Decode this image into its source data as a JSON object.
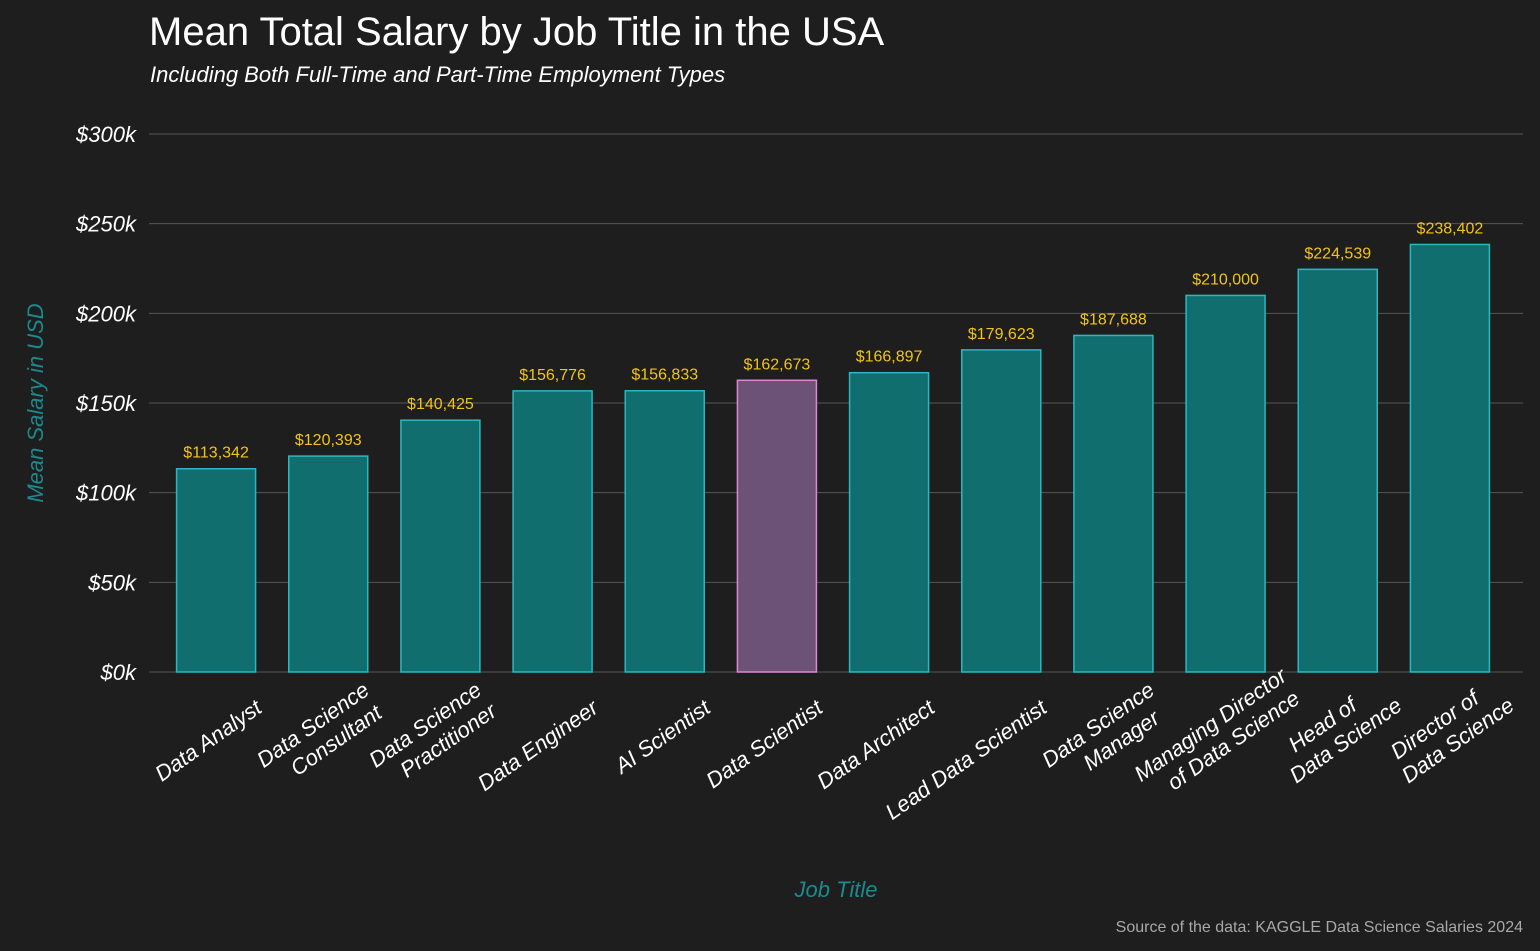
{
  "chart_data": {
    "type": "bar",
    "title": "Mean Total Salary by Job Title in the USA",
    "subtitle": "Including Both Full-Time and Part-Time Employment Types",
    "xlabel": "Job Title",
    "ylabel": "Mean Salary in USD",
    "ylim": [
      0,
      300000
    ],
    "y_ticks": [
      {
        "value": 0,
        "label": "$0k"
      },
      {
        "value": 50000,
        "label": "$50k"
      },
      {
        "value": 100000,
        "label": "$100k"
      },
      {
        "value": 150000,
        "label": "$150k"
      },
      {
        "value": 200000,
        "label": "$200k"
      },
      {
        "value": 250000,
        "label": "$250k"
      },
      {
        "value": 300000,
        "label": "$300k"
      }
    ],
    "grid": true,
    "highlight": "Data Scientist",
    "colors": {
      "background": "#1e1e1e",
      "bar_fill": "#106e6f",
      "bar_stroke": "#2ab8be",
      "highlight_fill": "#6b5276",
      "highlight_stroke": "#d88ad8",
      "value_label": "#f2c318",
      "axis_title": "#1b8a8f"
    },
    "categories": [
      "Data Analyst",
      "Data Science\nConsultant",
      "Data Science\nPractitioner",
      "Data Engineer",
      "AI Scientist",
      "Data Scientist",
      "Data Architect",
      "Lead Data Scientist",
      "Data Science\nManager",
      "Managing Director\nof Data Science",
      "Head of\nData Science",
      "Director of\nData Science"
    ],
    "values": [
      113342,
      120393,
      140425,
      156776,
      156833,
      162673,
      166897,
      179623,
      187688,
      210000,
      224539,
      238402
    ],
    "value_labels": [
      "$113,342",
      "$120,393",
      "$140,425",
      "$156,776",
      "$156,833",
      "$162,673",
      "$166,897",
      "$179,623",
      "$187,688",
      "$210,000",
      "$224,539",
      "$238,402"
    ],
    "caption": "Source of the data: KAGGLE Data Science Salaries 2024"
  }
}
